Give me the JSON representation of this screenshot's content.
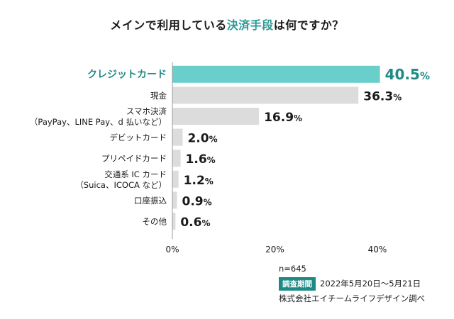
{
  "chart_data": {
    "type": "bar",
    "orientation": "horizontal",
    "title_parts": [
      "メインで利用している",
      "決済手段",
      "は何ですか？"
    ],
    "categories": [
      [
        "クレジットカード"
      ],
      [
        "現金"
      ],
      [
        "スマホ決済",
        "（PayPay、LINE Pay、d 払いなど）"
      ],
      [
        "デビットカード"
      ],
      [
        "プリペイドカード"
      ],
      [
        "交通系 IC カード",
        "（Suica、ICOCA など）"
      ],
      [
        "口座振込"
      ],
      [
        "その他"
      ]
    ],
    "values": [
      40.5,
      36.3,
      16.9,
      2.0,
      1.6,
      1.2,
      0.9,
      0.6
    ],
    "value_labels": [
      "40.5",
      "36.3",
      "16.9",
      "2.0",
      "1.6",
      "1.2",
      "0.9",
      "0.6"
    ],
    "unit": "%",
    "xlim": [
      0,
      40
    ],
    "xticks": [
      "0%",
      "20%",
      "40%"
    ],
    "highlight_index": 0,
    "colors": {
      "highlight": "#6acfcb",
      "bar": "#dcdcdc",
      "highlight_text": "#1f8a85",
      "axis": "#9a9a9a"
    }
  },
  "footer": {
    "sample": "n=645",
    "period_label": "調査期間",
    "period": "2022年5月20日〜5月21日",
    "source": "株式会社エイチームライフデザイン調べ"
  }
}
